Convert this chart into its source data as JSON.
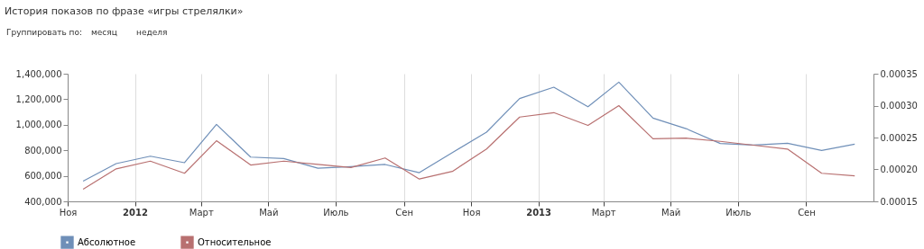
{
  "chart_data": {
    "type": "line",
    "title": "История показов по фразе «игры стрелялки»",
    "annotations": [
      "Группировать по:",
      "месяц",
      "неделя"
    ],
    "x": [
      "2011-11-15",
      "2011-12-15",
      "2012-01-15",
      "2012-02-15",
      "2012-03-15",
      "2012-04-15",
      "2012-05-15",
      "2012-06-15",
      "2012-07-15",
      "2012-08-15",
      "2012-09-15",
      "2012-10-15",
      "2012-11-15",
      "2012-12-15",
      "2013-01-15",
      "2013-02-15",
      "2013-03-15",
      "2013-04-15",
      "2013-05-15",
      "2013-06-15",
      "2013-07-15",
      "2013-08-15",
      "2013-09-15",
      "2013-10-15"
    ],
    "series": [
      {
        "name": "Абсолютное",
        "color": "#6f8fb8",
        "values": [
          559000,
          696000,
          754000,
          703000,
          1003000,
          747000,
          735000,
          660000,
          672000,
          689000,
          625000,
          782000,
          942000,
          1205000,
          1294000,
          1141000,
          1334000,
          1052000,
          970000,
          853000,
          841000,
          855000,
          799000,
          848000
        ]
      },
      {
        "name": "Относительное",
        "color": "#b87070",
        "axis": "y2",
        "values": [
          0.000169,
          0.000201,
          0.000213,
          0.000194,
          0.000245,
          0.000207,
          0.000213,
          0.000208,
          0.000203,
          0.000218,
          0.000185,
          0.000197,
          0.000232,
          0.000282,
          0.000289,
          0.000269,
          0.0003,
          0.000248,
          0.000249,
          0.000244,
          0.000238,
          0.000232,
          0.000194,
          0.00019
        ]
      }
    ],
    "xlim": [
      "2011-11-01",
      "2013-11-01"
    ],
    "xticks": [
      {
        "value": "2011-11-01",
        "label": "Ноя"
      },
      {
        "value": "2012-01-01",
        "label": "2012"
      },
      {
        "value": "2012-03-01",
        "label": "Март"
      },
      {
        "value": "2012-05-01",
        "label": "Май"
      },
      {
        "value": "2012-07-01",
        "label": "Июль"
      },
      {
        "value": "2012-09-01",
        "label": "Сен"
      },
      {
        "value": "2012-11-01",
        "label": "Ноя"
      },
      {
        "value": "2013-01-01",
        "label": "2013"
      },
      {
        "value": "2013-03-01",
        "label": "Март"
      },
      {
        "value": "2013-05-01",
        "label": "Май"
      },
      {
        "value": "2013-07-01",
        "label": "Июль"
      },
      {
        "value": "2013-09-01",
        "label": "Сен"
      }
    ],
    "ylim": [
      400000,
      1400000
    ],
    "yticks": [
      {
        "value": 400000,
        "label": "400,000"
      },
      {
        "value": 600000,
        "label": "600,000"
      },
      {
        "value": 800000,
        "label": "800,000"
      },
      {
        "value": 1000000,
        "label": "1,000,000"
      },
      {
        "value": 1200000,
        "label": "1,200,000"
      },
      {
        "value": 1400000,
        "label": "1,400,000"
      }
    ],
    "y2lim": [
      0.00015,
      0.00035
    ],
    "y2ticks": [
      {
        "value": 0.00015,
        "label": "0.00015"
      },
      {
        "value": 0.0002,
        "label": "0.00020"
      },
      {
        "value": 0.00025,
        "label": "0.00025"
      },
      {
        "value": 0.0003,
        "label": "0.00030"
      },
      {
        "value": 0.00035,
        "label": "0.00035"
      }
    ],
    "grid": "x",
    "legend": "bottom left",
    "marker": "none",
    "line_style": "solid"
  }
}
